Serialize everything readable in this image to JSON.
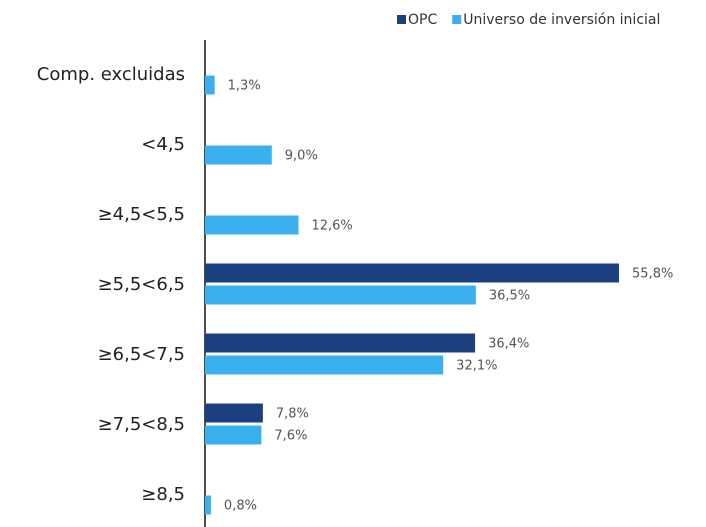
{
  "chart_data": {
    "type": "bar",
    "orientation": "horizontal",
    "categories": [
      "Comp. excluidas",
      "<4,5",
      "≥4,5<5,5",
      "≥5,5<6,5",
      "≥6,5<7,5",
      "≥7,5<8,5",
      "≥8,5"
    ],
    "series": [
      {
        "name": "OPC",
        "color": "#1b3f7f",
        "values": [
          null,
          null,
          null,
          55.8,
          36.4,
          7.8,
          null
        ],
        "value_labels": [
          null,
          null,
          null,
          "55,8%",
          "36,4%",
          "7,8%",
          null
        ]
      },
      {
        "name": "Universo de inversión inicial",
        "color": "#3bb0ee",
        "values": [
          1.3,
          9.0,
          12.6,
          36.5,
          32.1,
          7.6,
          0.8
        ],
        "value_labels": [
          "1,3%",
          "9,0%",
          "12,6%",
          "36,5%",
          "32,1%",
          "7,6%",
          "0,8%"
        ]
      }
    ],
    "legend": "top-right"
  }
}
